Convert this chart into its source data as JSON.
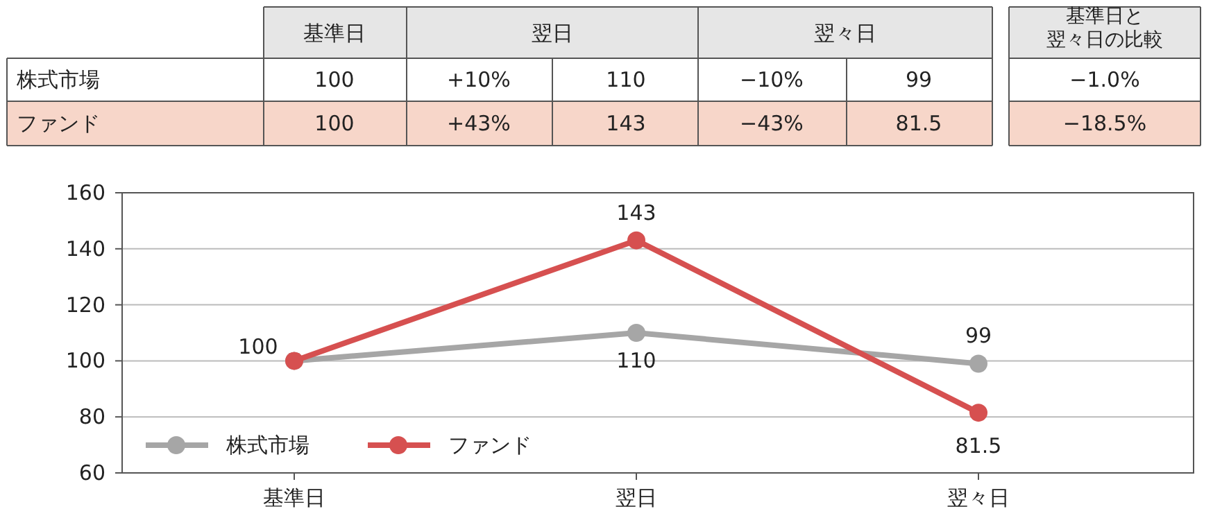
{
  "chart_data": {
    "type": "line",
    "categories": [
      "基準日",
      "翌日",
      "翌々日"
    ],
    "series": [
      {
        "name": "株式市場",
        "color": "#a6a6a6",
        "values": [
          100,
          110,
          99
        ],
        "value_labels": [
          null,
          "110",
          "99"
        ]
      },
      {
        "name": "ファンド",
        "color": "#d65050",
        "values": [
          100,
          143,
          81.5
        ],
        "value_labels": [
          "100",
          "143",
          "81.5"
        ]
      }
    ],
    "annotations": [
      "基準日と翌々日の比較",
      "100",
      "+10%",
      "110",
      "−10%",
      "99",
      "−1.0%",
      "100",
      "+43%",
      "143",
      "−43%",
      "81.5",
      "−18.5%"
    ],
    "ylim": [
      60,
      160
    ],
    "yticks": [
      60,
      80,
      100,
      120,
      140,
      160
    ],
    "grid": "y",
    "legend": "bottom left",
    "marker": "circle",
    "line_style": "solid"
  }
}
